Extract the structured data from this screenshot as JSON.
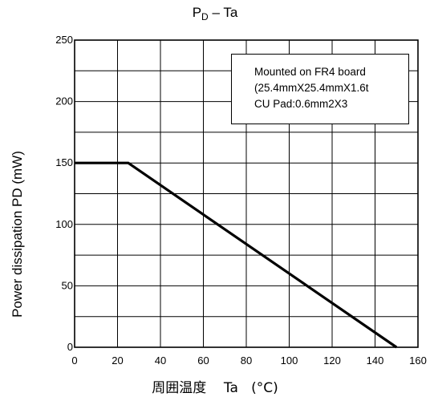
{
  "chart_data": {
    "type": "line",
    "title_main": "P",
    "title_sub": "D",
    "title_rest": " – Ta",
    "ylabel": "Power dissipation PD (mW)",
    "xlabel_jp": "周囲温度",
    "xlabel_ta": "Ta",
    "xlabel_unit": "(°C)",
    "xlim": [
      0,
      160
    ],
    "ylim": [
      0,
      250
    ],
    "x_ticks": [
      0,
      20,
      40,
      60,
      80,
      100,
      120,
      140,
      160
    ],
    "y_ticks": [
      0,
      50,
      100,
      150,
      200,
      250
    ],
    "grid": true,
    "x_grid_step": 20,
    "y_grid_step": 25,
    "series": [
      {
        "x": [
          0,
          25,
          150
        ],
        "y": [
          150,
          150,
          0
        ]
      }
    ],
    "legend": {
      "placement": "top-right",
      "lines": [
        "Mounted on FR4 board",
        "(25.4mmX25.4mmX1.6t",
        "CU Pad:0.6mm2X3"
      ]
    }
  }
}
